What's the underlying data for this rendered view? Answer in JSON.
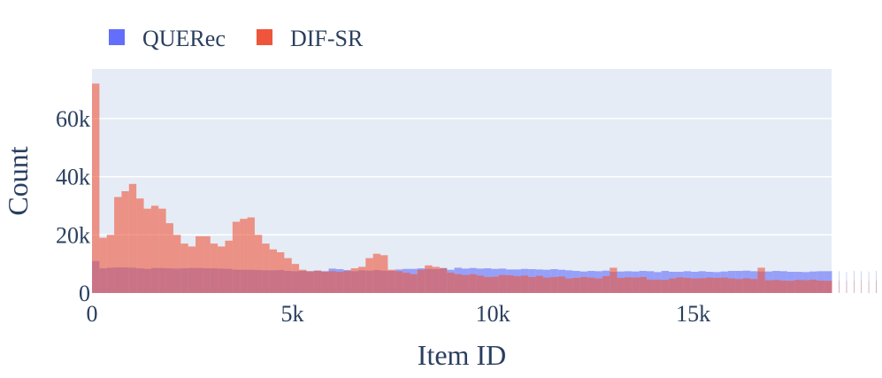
{
  "chart_data": {
    "type": "bar",
    "subtype": "overlaid-histogram",
    "title": "",
    "xlabel": "Item ID",
    "ylabel": "Count",
    "xlim": [
      0,
      18450
    ],
    "ylim": [
      0,
      77000
    ],
    "bin_width": 184.5,
    "x_ticks": [
      {
        "value": 0,
        "label": "0"
      },
      {
        "value": 5000,
        "label": "5k"
      },
      {
        "value": 10000,
        "label": "10k"
      },
      {
        "value": 15000,
        "label": "15k"
      }
    ],
    "y_ticks": [
      {
        "value": 0,
        "label": "0"
      },
      {
        "value": 20000,
        "label": "20k"
      },
      {
        "value": 40000,
        "label": "40k"
      },
      {
        "value": 60000,
        "label": "60k"
      }
    ],
    "grid": true,
    "legend_position": "top-left",
    "background_color": "#e5ecf6",
    "series": [
      {
        "name": "QUERec",
        "color": "#636efa",
        "values": [
          11000,
          8500,
          8700,
          8800,
          8800,
          8700,
          8500,
          8300,
          8600,
          8600,
          8500,
          8400,
          8500,
          8600,
          8600,
          8500,
          8500,
          8400,
          8300,
          8000,
          8000,
          8000,
          7900,
          7800,
          7800,
          7900,
          7600,
          7500,
          7600,
          7500,
          7700,
          7500,
          8400,
          8200,
          7900,
          7500,
          7800,
          7700,
          7900,
          7700,
          7600,
          8100,
          8300,
          8300,
          8500,
          8300,
          8200,
          8600,
          8000,
          8700,
          8400,
          8600,
          8400,
          8500,
          8300,
          8400,
          8100,
          8100,
          8300,
          8200,
          8100,
          8000,
          8200,
          8000,
          7800,
          7600,
          7400,
          7600,
          7500,
          7700,
          7300,
          7400,
          7500,
          7400,
          7600,
          7500,
          7200,
          7600,
          7300,
          7300,
          7500,
          7300,
          7500,
          7300,
          7200,
          7400,
          7600,
          7600,
          7700,
          7500,
          7400,
          7400,
          7600,
          7500,
          7300,
          7300,
          7200,
          7400,
          7500,
          7500,
          7600,
          7500,
          7300,
          7600,
          7500,
          7400,
          7600,
          7300,
          7400,
          7500,
          7500,
          7400,
          7600,
          7300,
          7500,
          7200,
          7300,
          7400,
          7300,
          7200,
          7200,
          7300,
          7300,
          7400,
          7200,
          7000,
          7200,
          7100,
          7200,
          7500,
          7400,
          7300,
          7100,
          7400,
          7200,
          7300,
          7400,
          7300,
          7300,
          7200,
          7100,
          7100,
          7200,
          7000,
          7000,
          7100,
          7200,
          7300,
          6900,
          7000,
          7300,
          7100,
          7100,
          7300,
          7100,
          6900,
          7000,
          7000,
          7000,
          7200,
          7000,
          7100,
          7000,
          6900,
          6900,
          7100,
          7000,
          6900,
          6800,
          6900,
          7000,
          6900,
          7200,
          7000,
          7100,
          7200,
          7100,
          7100,
          7200,
          7000,
          6700,
          5800,
          5500,
          5300,
          5500,
          5500,
          5200,
          5300,
          5500,
          5300
        ]
      },
      {
        "name": "DIF-SR",
        "color": "#ef553b",
        "values": [
          72000,
          19000,
          20000,
          33000,
          35000,
          37500,
          32500,
          29000,
          30000,
          29000,
          24000,
          20000,
          17000,
          16000,
          19500,
          19500,
          17000,
          16000,
          18000,
          24500,
          25500,
          26000,
          20000,
          17000,
          15000,
          14000,
          12000,
          10000,
          8000,
          7500,
          7700,
          7400,
          7500,
          7300,
          7600,
          8500,
          9000,
          12000,
          13500,
          13000,
          8000,
          7500,
          7000,
          6500,
          8000,
          9500,
          9000,
          8500,
          7000,
          6500,
          6200,
          6500,
          6000,
          5500,
          5600,
          6200,
          6100,
          5800,
          6000,
          5500,
          5900,
          5300,
          5500,
          5700,
          5000,
          5200,
          5500,
          5300,
          5000,
          5800,
          8700,
          5200,
          5400,
          5300,
          5500,
          4600,
          4600,
          4500,
          5000,
          5400,
          5200,
          5000,
          5100,
          5300,
          5200,
          5300,
          5000,
          4800,
          5100,
          4800,
          8700,
          4400,
          4500,
          4300,
          4200,
          4500,
          4400,
          4600,
          4300,
          4200,
          4500,
          4300,
          4100,
          4200,
          4300,
          4100,
          4300,
          4100,
          4000,
          4000,
          3800,
          4000,
          3800,
          3900,
          3700,
          3900,
          3800,
          3700,
          3800,
          3700,
          3800,
          3600,
          3700,
          3500,
          3600,
          3500,
          3700,
          3400,
          3300,
          3500,
          3300,
          3100,
          3200,
          3100,
          3000,
          2900,
          3200,
          2900,
          2900,
          2800,
          2700,
          2700,
          2600,
          2600,
          2500,
          2500,
          2400,
          2500,
          2300,
          2300,
          2400,
          2300,
          2400,
          2300,
          2400,
          2300,
          2200,
          2300,
          2100,
          2200,
          2200,
          2100,
          2100,
          2000,
          2000,
          2000,
          1900,
          1900,
          1800,
          1800,
          1700,
          1700,
          1800,
          1700,
          1600,
          1600,
          1600,
          1600,
          1500,
          1500,
          1500,
          1500,
          1400,
          1500,
          1400,
          1400,
          1400,
          1400,
          1300,
          1300,
          1300,
          1300,
          1300,
          1300,
          1300,
          1300,
          1300,
          1200,
          1200,
          1100
        ]
      }
    ]
  }
}
